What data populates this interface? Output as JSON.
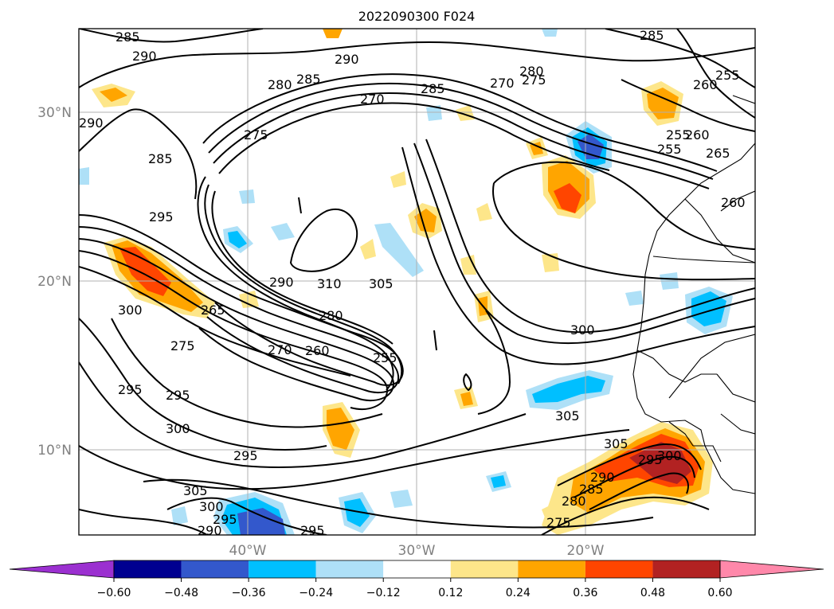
{
  "map": {
    "title": "2022090300 F024",
    "lat_labels": [
      "30°N",
      "20°N",
      "10°N"
    ],
    "lon_labels": [
      "40°W",
      "30°W",
      "20°W"
    ],
    "contour_labels": [
      "285",
      "290",
      "290",
      "285",
      "280",
      "270",
      "285",
      "270",
      "280",
      "275",
      "285",
      "255",
      "260",
      "265",
      "260",
      "275",
      "290",
      "285",
      "295",
      "300",
      "265",
      "275",
      "290",
      "310",
      "305",
      "280",
      "270",
      "260",
      "255",
      "300",
      "295",
      "295",
      "300",
      "295",
      "305",
      "300",
      "295",
      "290",
      "295",
      "305",
      "305",
      "295",
      "300",
      "290",
      "285",
      "280",
      "275",
      "255",
      "260",
      "255"
    ],
    "colorbar": {
      "colors": [
        "#9b30d0",
        "#000090",
        "#3358cc",
        "#00bfff",
        "#aee0f7",
        "#ffffff",
        "#fde68a",
        "#ffa500",
        "#ff4500",
        "#b22222",
        "#ff88aa"
      ],
      "tick_labels": [
        "−0.60",
        "−0.48",
        "−0.36",
        "−0.24",
        "−0.12",
        "0.12",
        "0.24",
        "0.36",
        "0.48",
        "0.60"
      ]
    }
  }
}
